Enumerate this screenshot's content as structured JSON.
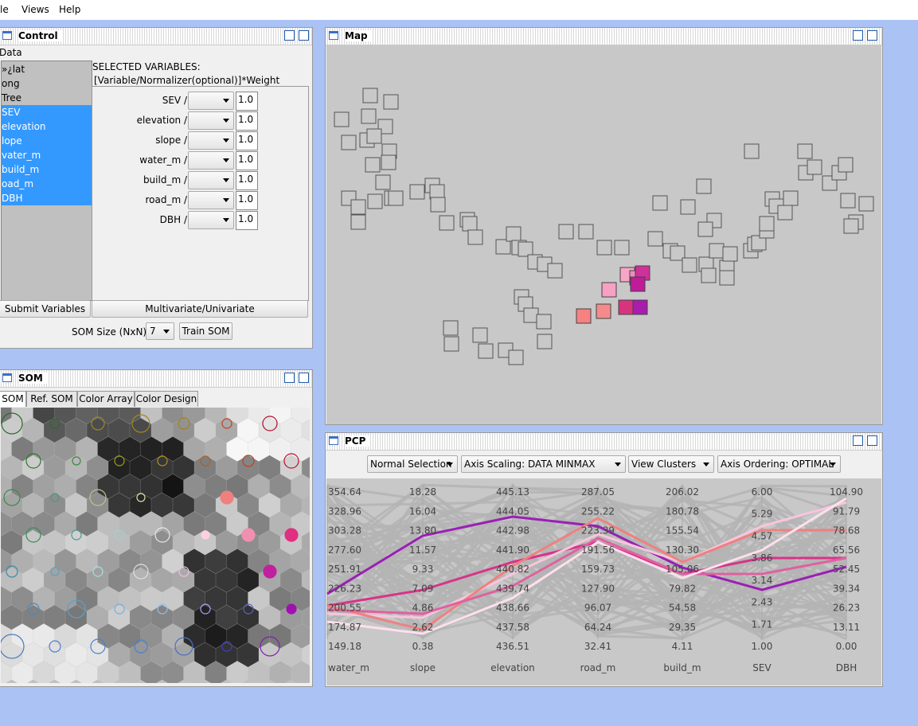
{
  "menu": [
    "le",
    "Views",
    "Help"
  ],
  "control": {
    "title": "Control",
    "data_label": "Data",
    "variables": [
      {
        "name": "»¿lat",
        "selected": false
      },
      {
        "name": "ong",
        "selected": false
      },
      {
        "name": "Tree",
        "selected": false
      },
      {
        "name": "SEV",
        "selected": true
      },
      {
        "name": "elevation",
        "selected": true
      },
      {
        "name": "lope",
        "selected": true
      },
      {
        "name": "vater_m",
        "selected": true
      },
      {
        "name": "build_m",
        "selected": true
      },
      {
        "name": "oad_m",
        "selected": true
      },
      {
        "name": "DBH",
        "selected": true
      }
    ],
    "selected_heading": "SELECTED VARIABLES:",
    "format_hint": "[Variable/Normalizer(optional)]*Weight",
    "rows": [
      {
        "name": "SEV /",
        "weight": "1.0"
      },
      {
        "name": "elevation /",
        "weight": "1.0"
      },
      {
        "name": "slope /",
        "weight": "1.0"
      },
      {
        "name": "water_m /",
        "weight": "1.0"
      },
      {
        "name": "build_m /",
        "weight": "1.0"
      },
      {
        "name": "road_m /",
        "weight": "1.0"
      },
      {
        "name": "DBH /",
        "weight": "1.0"
      }
    ],
    "submit": "Submit Variables",
    "mode": "Multivariate/Univariate",
    "som_size_label": "SOM Size (NxN):",
    "som_size": "7",
    "train": "Train SOM"
  },
  "map": {
    "title": "Map"
  },
  "som": {
    "title": "SOM",
    "tabs": [
      "SOM",
      "Ref. SOM",
      "Color Array",
      "Color Design"
    ]
  },
  "pcp": {
    "title": "PCP",
    "dropdowns": [
      "Normal Selection",
      "Axis Scaling: DATA MINMAX",
      "View Clusters",
      "Axis Ordering: OPTIMAL"
    ],
    "axes": [
      {
        "name": "water_m",
        "ticks": [
          "354.64",
          "328.96",
          "303.28",
          "277.60",
          "251.91",
          "226.23",
          "200.55",
          "174.87",
          "149.18"
        ]
      },
      {
        "name": "slope",
        "ticks": [
          "18.28",
          "16.04",
          "13.80",
          "11.57",
          "9.33",
          "7.09",
          "4.86",
          "2.62",
          "0.38"
        ]
      },
      {
        "name": "elevation",
        "ticks": [
          "445.13",
          "444.05",
          "442.98",
          "441.90",
          "440.82",
          "439.74",
          "438.66",
          "437.58",
          "436.51"
        ]
      },
      {
        "name": "road_m",
        "ticks": [
          "287.05",
          "255.22",
          "223.39",
          "191.56",
          "159.73",
          "127.90",
          "96.07",
          "64.24",
          "32.41"
        ]
      },
      {
        "name": "build_m",
        "ticks": [
          "206.02",
          "180.78",
          "155.54",
          "130.30",
          "105.06",
          "79.82",
          "54.58",
          "29.35",
          "4.11"
        ]
      },
      {
        "name": "SEV",
        "ticks": [
          "6.00",
          "5.29",
          "4.57",
          "3.86",
          "3.14",
          "2.43",
          "1.71",
          "1.00"
        ]
      },
      {
        "name": "DBH",
        "ticks": [
          "104.90",
          "91.79",
          "78.68",
          "65.56",
          "52.45",
          "39.34",
          "26.23",
          "13.11",
          "0.00"
        ]
      }
    ]
  }
}
